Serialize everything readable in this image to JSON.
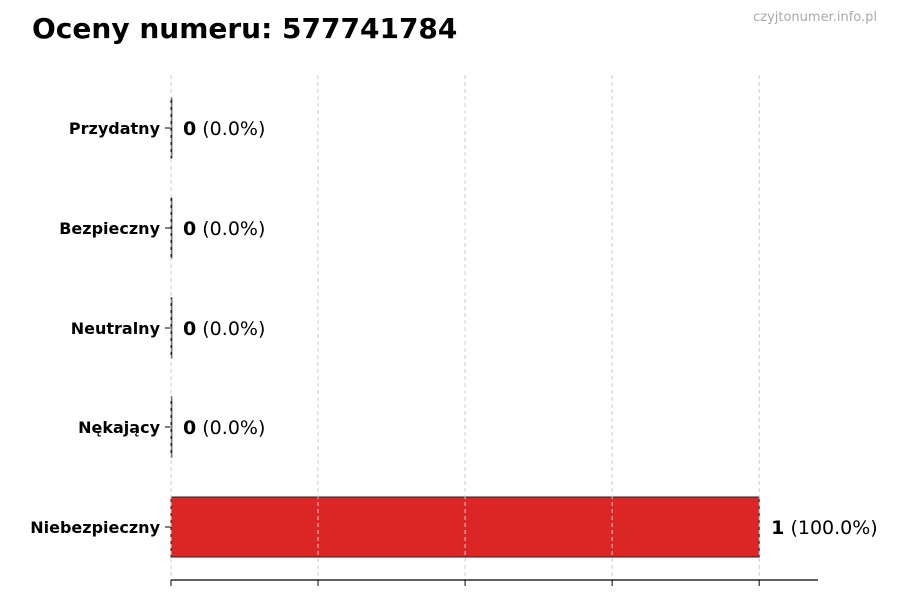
{
  "title": "Oceny numeru: 577741784",
  "watermark": "czyjtonumer.info.pl",
  "chart_data": {
    "type": "bar",
    "orientation": "horizontal",
    "title": "Oceny numeru: 577741784",
    "categories": [
      "Przydatny",
      "Bezpieczny",
      "Neutralny",
      "Nękający",
      "Niebezpieczny"
    ],
    "values": [
      0,
      0,
      0,
      0,
      1
    ],
    "data_labels": [
      {
        "count": "0",
        "pct": "(0.0%)"
      },
      {
        "count": "0",
        "pct": "(0.0%)"
      },
      {
        "count": "0",
        "pct": "(0.0%)"
      },
      {
        "count": "0",
        "pct": "(0.0%)"
      },
      {
        "count": "1",
        "pct": "(100.0%)"
      }
    ],
    "bar_colors": [
      "#dc2626",
      "#dc2626",
      "#dc2626",
      "#dc2626",
      "#dc2626"
    ],
    "xlim": [
      0,
      1.1
    ],
    "xticks": [
      0,
      0.25,
      0.5,
      0.75,
      1.0
    ],
    "xtick_labels_visible": false,
    "grid": "x-dashed",
    "legend": "none"
  }
}
